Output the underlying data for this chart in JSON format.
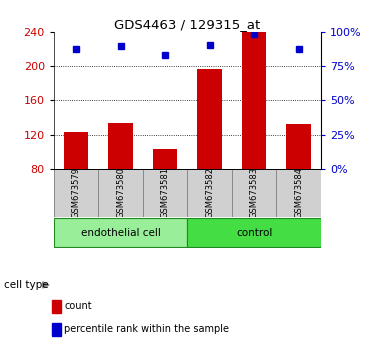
{
  "title": "GDS4463 / 129315_at",
  "samples": [
    "GSM673579",
    "GSM673580",
    "GSM673581",
    "GSM673582",
    "GSM673583",
    "GSM673584"
  ],
  "bar_values": [
    123,
    133,
    103,
    197,
    240,
    132
  ],
  "percentile_values": [
    220,
    223,
    213,
    225,
    237,
    220
  ],
  "ylim_left": [
    80,
    240
  ],
  "yticks_left": [
    80,
    120,
    160,
    200,
    240
  ],
  "ylim_right": [
    0,
    100
  ],
  "yticks_right": [
    0,
    25,
    50,
    75,
    100
  ],
  "bar_color": "#cc0000",
  "dot_color": "#0000cc",
  "grid_lines": [
    120,
    160,
    200
  ],
  "groups": [
    {
      "label": "endothelial cell",
      "n": 3,
      "color": "#99ee99"
    },
    {
      "label": "control",
      "n": 3,
      "color": "#44dd44"
    }
  ],
  "cell_type_label": "cell type",
  "legend_items": [
    {
      "label": "count",
      "color": "#cc0000"
    },
    {
      "label": "percentile rank within the sample",
      "color": "#0000cc"
    }
  ],
  "background_color": "#ffffff",
  "tick_label_color_left": "#cc0000",
  "tick_label_color_right": "#0000cc",
  "bar_width": 0.55,
  "sample_box_color": "#d0d0d0",
  "sample_box_edge": "#888888"
}
